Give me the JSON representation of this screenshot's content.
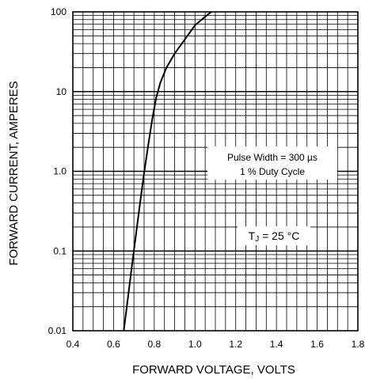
{
  "chart_data": {
    "type": "line",
    "xlabel": "FORWARD VOLTAGE, VOLTS",
    "ylabel": "FORWARD CURRENT, AMPERES",
    "xscale": "linear",
    "yscale": "log",
    "xlim": [
      0.4,
      1.8
    ],
    "ylim": [
      0.01,
      100
    ],
    "grid": true,
    "x_ticks": [
      0.4,
      0.6,
      0.8,
      1.0,
      1.2,
      1.4,
      1.6,
      1.8
    ],
    "x_tick_labels": [
      "0.4",
      "0.6",
      "0.8",
      "1.0",
      "1.2",
      "1.4",
      "1.6",
      "1.8"
    ],
    "y_ticks": [
      0.01,
      0.1,
      1,
      10,
      100
    ],
    "y_tick_labels": [
      "0.01",
      "0.1",
      "1.0",
      "10",
      "100"
    ],
    "series": [
      {
        "x": [
          0.65,
          0.67,
          0.69,
          0.71,
          0.73,
          0.75,
          0.77,
          0.79,
          0.81,
          0.83,
          0.86,
          0.9,
          0.95,
          1.0,
          1.05,
          1.08
        ],
        "y": [
          0.01,
          0.025,
          0.065,
          0.16,
          0.4,
          0.95,
          2.1,
          4.5,
          8.5,
          13,
          20,
          30,
          45,
          68,
          87,
          100
        ]
      }
    ],
    "annotations": {
      "pulse_line1": "Pulse Width = 300 µs",
      "pulse_line2": "1 % Duty Cycle",
      "tj_main": "T",
      "tj_sub": "J",
      "tj_rest": " = 25 °C"
    }
  }
}
